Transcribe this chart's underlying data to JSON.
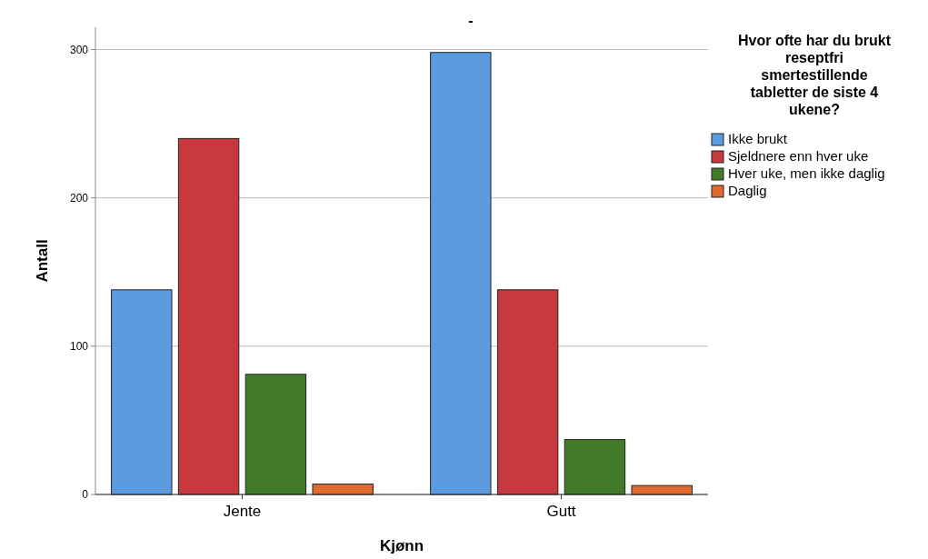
{
  "chart_data": {
    "type": "bar",
    "title": "-",
    "xlabel": "Kjønn",
    "ylabel": "Antall",
    "legend_title": "Hvor ofte har du brukt reseptfri smertestillende tabletter de siste 4 ukene?",
    "categories": [
      "Jente",
      "Gutt"
    ],
    "series": [
      {
        "name": "Ikke brukt",
        "color": "#5b9be0",
        "values": [
          138,
          298
        ]
      },
      {
        "name": "Sjeldnere enn hver uke",
        "color": "#c8393f",
        "values": [
          240,
          138
        ]
      },
      {
        "name": "Hver uke, men ikke daglig",
        "color": "#417b2a",
        "values": [
          81,
          37
        ]
      },
      {
        "name": "Daglig",
        "color": "#e0692f",
        "values": [
          7,
          6
        ]
      }
    ],
    "ylim": [
      0,
      315
    ],
    "yticks": [
      0,
      100,
      200,
      300
    ],
    "grid": "y",
    "legend": "right"
  }
}
